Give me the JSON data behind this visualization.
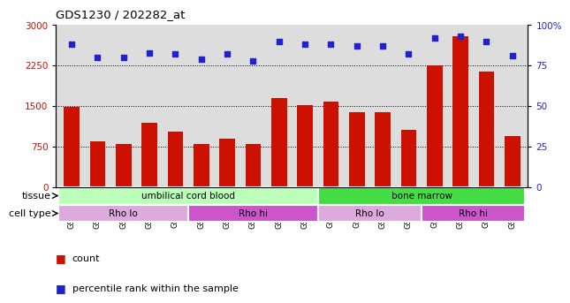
{
  "title": "GDS1230 / 202282_at",
  "samples": [
    "GSM51392",
    "GSM51394",
    "GSM51396",
    "GSM51398",
    "GSM51400",
    "GSM51391",
    "GSM51393",
    "GSM51395",
    "GSM51397",
    "GSM51399",
    "GSM51402",
    "GSM51404",
    "GSM51406",
    "GSM51408",
    "GSM51401",
    "GSM51403",
    "GSM51405",
    "GSM51407"
  ],
  "counts": [
    1480,
    850,
    800,
    1180,
    1020,
    800,
    900,
    790,
    1650,
    1520,
    1580,
    1390,
    1380,
    1060,
    2250,
    2800,
    2130,
    940
  ],
  "percentiles": [
    88,
    80,
    80,
    83,
    82,
    79,
    82,
    78,
    90,
    88,
    88,
    87,
    87,
    82,
    92,
    93,
    90,
    81
  ],
  "ylim_left": [
    0,
    3000
  ],
  "ylim_right": [
    0,
    100
  ],
  "yticks_left": [
    0,
    750,
    1500,
    2250,
    3000
  ],
  "yticks_right": [
    0,
    25,
    50,
    75,
    100
  ],
  "bar_color": "#cc1100",
  "dot_color": "#2222cc",
  "tissue_groups": [
    {
      "label": "umbilical cord blood",
      "start": 0,
      "end": 10,
      "color": "#bbffbb"
    },
    {
      "label": "bone marrow",
      "start": 10,
      "end": 18,
      "color": "#44dd44"
    }
  ],
  "cell_type_groups": [
    {
      "label": "Rho lo",
      "start": 0,
      "end": 5,
      "color": "#ddaadd"
    },
    {
      "label": "Rho hi",
      "start": 5,
      "end": 10,
      "color": "#cc55cc"
    },
    {
      "label": "Rho lo",
      "start": 10,
      "end": 14,
      "color": "#ddaadd"
    },
    {
      "label": "Rho hi",
      "start": 14,
      "end": 18,
      "color": "#cc55cc"
    }
  ],
  "tissue_label": "tissue",
  "cell_type_label": "cell type",
  "axis_color_left": "#cc1100",
  "axis_color_right": "#2222cc",
  "bg_color": "#ffffff",
  "plot_bg_color": "#dddddd"
}
